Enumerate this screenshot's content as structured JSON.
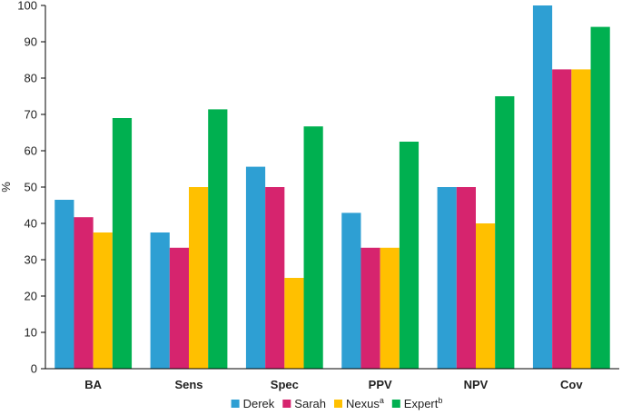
{
  "chart_data": {
    "type": "bar",
    "title": "",
    "xlabel": "",
    "ylabel": "%",
    "ylim": [
      0,
      100
    ],
    "yticks": [
      0,
      10,
      20,
      30,
      40,
      50,
      60,
      70,
      80,
      90,
      100
    ],
    "grid": false,
    "legend_position": "bottom",
    "categories": [
      "BA",
      "Sens",
      "Spec",
      "PPV",
      "NPV",
      "Cov"
    ],
    "series": [
      {
        "name": "Derek",
        "sup": "",
        "color": "#2e9fd3",
        "values": [
          46.5,
          37.5,
          55.6,
          42.9,
          50.0,
          100.0
        ]
      },
      {
        "name": "Sarah",
        "sup": "",
        "color": "#d6246e",
        "values": [
          41.7,
          33.3,
          50.0,
          33.3,
          50.0,
          82.4
        ]
      },
      {
        "name": "Nexus",
        "sup": "a",
        "color": "#ffc000",
        "values": [
          37.5,
          50.0,
          25.0,
          33.3,
          40.0,
          82.4
        ]
      },
      {
        "name": "Expert",
        "sup": "b",
        "color": "#00b050",
        "values": [
          69.0,
          71.4,
          66.7,
          62.5,
          75.0,
          94.1
        ]
      }
    ]
  }
}
